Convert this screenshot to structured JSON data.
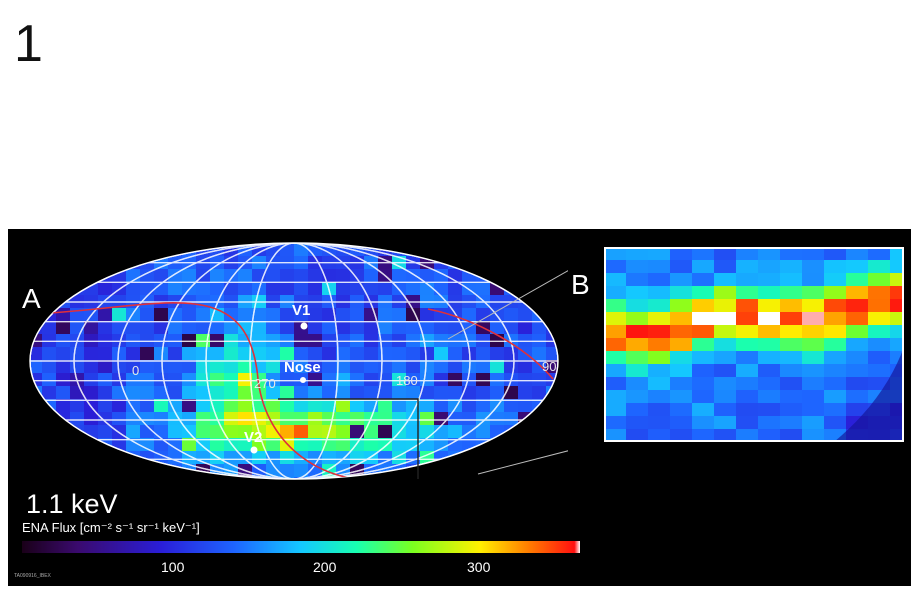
{
  "page_number": "1",
  "panel_a_label": "A",
  "panel_b_label": "B",
  "longitude_labels": [
    "0",
    "270",
    "180",
    "90"
  ],
  "point_labels": [
    "V1",
    "Nose",
    "V2"
  ],
  "energy_label": "1.1 keV",
  "flux_label": "ENA Flux [cm⁻² s⁻¹ sr⁻¹ keV⁻¹]",
  "colorbar_ticks": [
    "100",
    "200",
    "300"
  ],
  "credit": "TA090916_IBEX"
}
